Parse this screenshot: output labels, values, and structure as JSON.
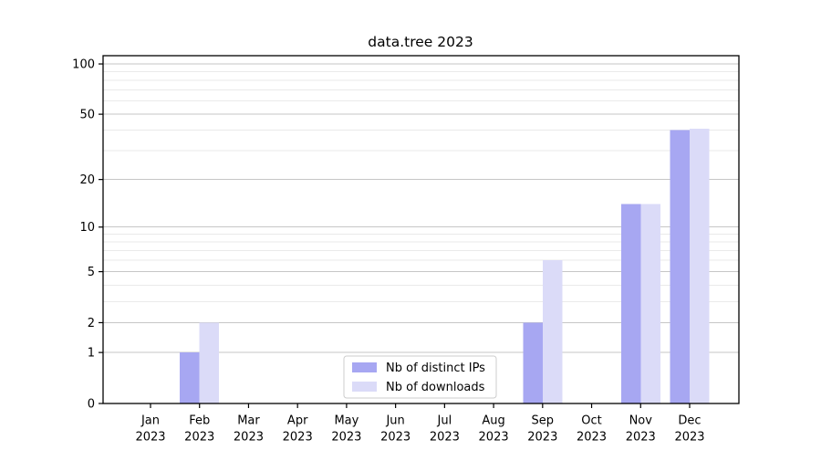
{
  "chart_data": {
    "type": "bar",
    "title": "data.tree 2023",
    "categories": [
      "Jan",
      "Feb",
      "Mar",
      "Apr",
      "May",
      "Jun",
      "Jul",
      "Aug",
      "Sep",
      "Oct",
      "Nov",
      "Dec"
    ],
    "x_year_label": "2023",
    "series": [
      {
        "name": "Nb of distinct IPs",
        "color": "#a7a7f2",
        "values": [
          0,
          1,
          0,
          0,
          0,
          0,
          0,
          0,
          2,
          0,
          14,
          40
        ]
      },
      {
        "name": "Nb of downloads",
        "color": "#dbdbf8",
        "values": [
          0,
          2,
          0,
          0,
          0,
          0,
          0,
          0,
          6,
          0,
          14,
          41
        ]
      }
    ],
    "xlabel": "",
    "ylabel": "",
    "yscale": "log1p",
    "y_major_ticks": [
      0,
      1,
      2,
      5,
      10,
      20,
      50,
      100
    ],
    "y_minor_ticks": [
      3,
      4,
      6,
      7,
      8,
      9,
      30,
      40,
      60,
      70,
      80,
      90
    ],
    "ylim": [
      0,
      112
    ],
    "grid": "on",
    "legend_position": "lower center",
    "colors": {
      "grid_major": "#c6c6c6",
      "grid_minor": "#eaeaea",
      "axis": "#000000",
      "background": "#ffffff",
      "text": "#000000"
    }
  }
}
